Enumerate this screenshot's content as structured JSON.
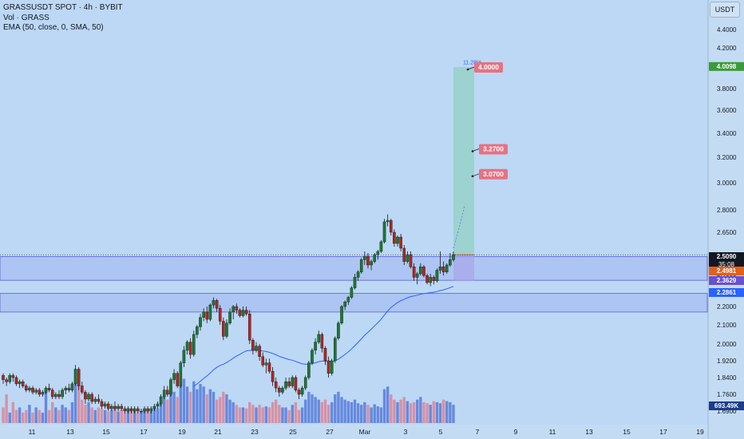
{
  "header": {
    "title": "GRASSUSDT SPOT · 4h · BYBIT",
    "volume_label": "Vol · GRASS",
    "ema_label": "EMA (50, close, 0, SMA, 50)"
  },
  "currency": "USDT",
  "colors": {
    "background": "#bcd8f5",
    "up": "#1b7a2e",
    "down": "#b3261e",
    "ema": "#2962ff",
    "zone": "#7b82e6",
    "target_box": "#8fd0c0",
    "target_label": "#e57383"
  },
  "chart_data": {
    "type": "candlestick",
    "x_tick_labels": [
      "11",
      "13",
      "15",
      "17",
      "19",
      "21",
      "23",
      "25",
      "27",
      "Mar",
      "3",
      "5",
      "7",
      "9",
      "11",
      "13",
      "15",
      "17",
      "19"
    ],
    "y_tick_labels": [
      "4.4000",
      "4.2000",
      "4.0000",
      "3.8000",
      "3.6000",
      "3.4000",
      "3.2000",
      "3.0000",
      "2.8000",
      "2.6500",
      "2.5000",
      "2.4000",
      "2.3000",
      "2.2000",
      "2.1000",
      "2.0000",
      "1.9200",
      "1.8400",
      "1.7600",
      "1.6900"
    ],
    "price_range": [
      1.67,
      4.5
    ],
    "price_labels": [
      {
        "label": "4.0098",
        "value": 4.0098,
        "color": "#3d9a3a"
      },
      {
        "label": "2.5090",
        "value": 2.509,
        "color": "#131722",
        "sub": "35:08"
      },
      {
        "label": "2.4981",
        "value": 2.4981,
        "color": "#e0611a"
      },
      {
        "label": "2.3629",
        "value": 2.3629,
        "color": "#6a4fd0"
      },
      {
        "label": "2.2861",
        "value": 2.2861,
        "color": "#2962ff"
      }
    ],
    "volume_label": "693.49K",
    "candles": [
      [
        1.85,
        1.86,
        1.81,
        1.83
      ],
      [
        1.83,
        1.84,
        1.8,
        1.82
      ],
      [
        1.82,
        1.86,
        1.81,
        1.85
      ],
      [
        1.85,
        1.86,
        1.82,
        1.84
      ],
      [
        1.84,
        1.85,
        1.8,
        1.81
      ],
      [
        1.81,
        1.83,
        1.79,
        1.82
      ],
      [
        1.82,
        1.83,
        1.79,
        1.8
      ],
      [
        1.8,
        1.81,
        1.77,
        1.78
      ],
      [
        1.78,
        1.8,
        1.77,
        1.79
      ],
      [
        1.79,
        1.8,
        1.76,
        1.77
      ],
      [
        1.77,
        1.79,
        1.76,
        1.78
      ],
      [
        1.78,
        1.79,
        1.75,
        1.76
      ],
      [
        1.76,
        1.78,
        1.75,
        1.77
      ],
      [
        1.77,
        1.8,
        1.76,
        1.79
      ],
      [
        1.79,
        1.81,
        1.77,
        1.78
      ],
      [
        1.78,
        1.79,
        1.74,
        1.75
      ],
      [
        1.75,
        1.77,
        1.74,
        1.76
      ],
      [
        1.76,
        1.78,
        1.74,
        1.75
      ],
      [
        1.75,
        1.79,
        1.74,
        1.78
      ],
      [
        1.78,
        1.8,
        1.76,
        1.79
      ],
      [
        1.79,
        1.81,
        1.77,
        1.78
      ],
      [
        1.78,
        1.82,
        1.77,
        1.81
      ],
      [
        1.81,
        1.9,
        1.8,
        1.88
      ],
      [
        1.88,
        1.89,
        1.78,
        1.8
      ],
      [
        1.8,
        1.82,
        1.76,
        1.77
      ],
      [
        1.77,
        1.78,
        1.72,
        1.74
      ],
      [
        1.74,
        1.77,
        1.73,
        1.76
      ],
      [
        1.76,
        1.77,
        1.72,
        1.73
      ],
      [
        1.73,
        1.75,
        1.72,
        1.74
      ],
      [
        1.74,
        1.76,
        1.72,
        1.73
      ],
      [
        1.73,
        1.74,
        1.7,
        1.71
      ],
      [
        1.71,
        1.73,
        1.7,
        1.72
      ],
      [
        1.72,
        1.73,
        1.69,
        1.7
      ],
      [
        1.7,
        1.72,
        1.69,
        1.71
      ],
      [
        1.71,
        1.73,
        1.69,
        1.7
      ],
      [
        1.7,
        1.72,
        1.69,
        1.71
      ],
      [
        1.71,
        1.72,
        1.69,
        1.7
      ],
      [
        1.7,
        1.71,
        1.68,
        1.69
      ],
      [
        1.69,
        1.71,
        1.68,
        1.7
      ],
      [
        1.7,
        1.71,
        1.68,
        1.69
      ],
      [
        1.69,
        1.71,
        1.68,
        1.7
      ],
      [
        1.7,
        1.71,
        1.68,
        1.69
      ],
      [
        1.69,
        1.7,
        1.68,
        1.69
      ],
      [
        1.69,
        1.71,
        1.68,
        1.7
      ],
      [
        1.7,
        1.71,
        1.68,
        1.69
      ],
      [
        1.69,
        1.71,
        1.68,
        1.7
      ],
      [
        1.7,
        1.72,
        1.69,
        1.71
      ],
      [
        1.71,
        1.73,
        1.7,
        1.72
      ],
      [
        1.72,
        1.76,
        1.71,
        1.75
      ],
      [
        1.75,
        1.8,
        1.74,
        1.78
      ],
      [
        1.78,
        1.8,
        1.75,
        1.76
      ],
      [
        1.76,
        1.84,
        1.75,
        1.83
      ],
      [
        1.83,
        1.88,
        1.81,
        1.86
      ],
      [
        1.86,
        1.87,
        1.79,
        1.8
      ],
      [
        1.8,
        1.92,
        1.79,
        1.91
      ],
      [
        1.91,
        1.99,
        1.89,
        1.97
      ],
      [
        1.97,
        2.02,
        1.95,
        2.01
      ],
      [
        2.01,
        2.03,
        1.93,
        1.95
      ],
      [
        1.95,
        2.07,
        1.94,
        2.05
      ],
      [
        2.05,
        2.1,
        2.03,
        2.09
      ],
      [
        2.09,
        2.16,
        2.07,
        2.14
      ],
      [
        2.14,
        2.19,
        2.12,
        2.17
      ],
      [
        2.17,
        2.2,
        2.11,
        2.13
      ],
      [
        2.13,
        2.22,
        2.12,
        2.21
      ],
      [
        2.21,
        2.26,
        2.19,
        2.24
      ],
      [
        2.24,
        2.25,
        2.17,
        2.19
      ],
      [
        2.19,
        2.21,
        2.1,
        2.12
      ],
      [
        2.12,
        2.14,
        2.02,
        2.04
      ],
      [
        2.04,
        2.13,
        2.03,
        2.11
      ],
      [
        2.11,
        2.19,
        2.1,
        2.17
      ],
      [
        2.17,
        2.21,
        2.13,
        2.2
      ],
      [
        2.2,
        2.22,
        2.16,
        2.18
      ],
      [
        2.18,
        2.19,
        2.14,
        2.15
      ],
      [
        2.15,
        2.2,
        2.14,
        2.18
      ],
      [
        2.18,
        2.2,
        2.15,
        2.16
      ],
      [
        2.16,
        2.18,
        2.0,
        2.02
      ],
      [
        2.02,
        2.03,
        1.95,
        1.97
      ],
      [
        1.97,
        2.01,
        1.96,
        1.99
      ],
      [
        1.99,
        2.0,
        1.92,
        1.94
      ],
      [
        1.94,
        1.96,
        1.89,
        1.9
      ],
      [
        1.9,
        1.93,
        1.86,
        1.91
      ],
      [
        1.91,
        1.93,
        1.86,
        1.87
      ],
      [
        1.87,
        1.89,
        1.8,
        1.82
      ],
      [
        1.82,
        1.84,
        1.77,
        1.79
      ],
      [
        1.79,
        1.8,
        1.75,
        1.77
      ],
      [
        1.77,
        1.8,
        1.76,
        1.79
      ],
      [
        1.79,
        1.84,
        1.78,
        1.82
      ],
      [
        1.82,
        1.84,
        1.79,
        1.8
      ],
      [
        1.8,
        1.85,
        1.79,
        1.84
      ],
      [
        1.84,
        1.85,
        1.77,
        1.78
      ],
      [
        1.78,
        1.79,
        1.74,
        1.76
      ],
      [
        1.76,
        1.8,
        1.75,
        1.79
      ],
      [
        1.79,
        1.85,
        1.78,
        1.84
      ],
      [
        1.84,
        1.92,
        1.83,
        1.91
      ],
      [
        1.91,
        1.98,
        1.9,
        1.97
      ],
      [
        1.97,
        2.03,
        1.95,
        2.01
      ],
      [
        2.01,
        2.07,
        2.0,
        2.05
      ],
      [
        2.05,
        2.06,
        1.96,
        1.98
      ],
      [
        1.98,
        1.99,
        1.9,
        1.92
      ],
      [
        1.92,
        1.94,
        1.84,
        1.86
      ],
      [
        1.86,
        1.93,
        1.85,
        1.92
      ],
      [
        1.92,
        2.04,
        1.91,
        2.03
      ],
      [
        2.03,
        2.12,
        2.02,
        2.11
      ],
      [
        2.11,
        2.21,
        2.1,
        2.2
      ],
      [
        2.2,
        2.24,
        2.18,
        2.23
      ],
      [
        2.23,
        2.27,
        2.21,
        2.26
      ],
      [
        2.26,
        2.33,
        2.25,
        2.32
      ],
      [
        2.32,
        2.4,
        2.31,
        2.38
      ],
      [
        2.38,
        2.42,
        2.36,
        2.41
      ],
      [
        2.41,
        2.49,
        2.4,
        2.48
      ],
      [
        2.48,
        2.53,
        2.45,
        2.5
      ],
      [
        2.5,
        2.52,
        2.43,
        2.45
      ],
      [
        2.45,
        2.48,
        2.42,
        2.47
      ],
      [
        2.47,
        2.52,
        2.46,
        2.51
      ],
      [
        2.51,
        2.54,
        2.48,
        2.53
      ],
      [
        2.53,
        2.6,
        2.52,
        2.59
      ],
      [
        2.59,
        2.74,
        2.58,
        2.72
      ],
      [
        2.72,
        2.77,
        2.69,
        2.73
      ],
      [
        2.73,
        2.74,
        2.63,
        2.65
      ],
      [
        2.65,
        2.67,
        2.56,
        2.58
      ],
      [
        2.58,
        2.63,
        2.56,
        2.62
      ],
      [
        2.62,
        2.64,
        2.53,
        2.55
      ],
      [
        2.55,
        2.57,
        2.45,
        2.47
      ],
      [
        2.47,
        2.53,
        2.46,
        2.51
      ],
      [
        2.51,
        2.53,
        2.43,
        2.44
      ],
      [
        2.44,
        2.46,
        2.36,
        2.38
      ],
      [
        2.38,
        2.41,
        2.34,
        2.4
      ],
      [
        2.4,
        2.46,
        2.39,
        2.44
      ],
      [
        2.44,
        2.45,
        2.38,
        2.39
      ],
      [
        2.39,
        2.4,
        2.34,
        2.35
      ],
      [
        2.35,
        2.4,
        2.33,
        2.38
      ],
      [
        2.38,
        2.39,
        2.34,
        2.36
      ],
      [
        2.36,
        2.43,
        2.35,
        2.42
      ],
      [
        2.42,
        2.53,
        2.4,
        2.44
      ],
      [
        2.44,
        2.47,
        2.39,
        2.41
      ],
      [
        2.41,
        2.46,
        2.4,
        2.45
      ],
      [
        2.45,
        2.52,
        2.44,
        2.48
      ],
      [
        2.48,
        2.53,
        2.47,
        2.51
      ]
    ],
    "volumes": [
      30,
      55,
      20,
      40,
      25,
      30,
      20,
      25,
      35,
      20,
      30,
      25,
      20,
      60,
      25,
      40,
      30,
      25,
      35,
      30,
      25,
      40,
      85,
      95,
      45,
      35,
      40,
      30,
      25,
      30,
      28,
      25,
      22,
      25,
      30,
      22,
      25,
      20,
      28,
      22,
      25,
      20,
      22,
      25,
      24,
      22,
      30,
      28,
      40,
      55,
      45,
      70,
      60,
      50,
      75,
      85,
      70,
      60,
      80,
      65,
      75,
      70,
      55,
      65,
      60,
      45,
      50,
      60,
      55,
      45,
      40,
      35,
      30,
      30,
      28,
      40,
      35,
      30,
      35,
      30,
      32,
      30,
      40,
      45,
      35,
      30,
      30,
      25,
      35,
      40,
      25,
      30,
      45,
      60,
      55,
      50,
      45,
      40,
      45,
      35,
      40,
      55,
      60,
      50,
      45,
      42,
      40,
      45,
      38,
      35,
      40,
      35,
      30,
      36,
      32,
      30,
      65,
      70,
      55,
      45,
      40,
      45,
      50,
      42,
      38,
      40,
      45,
      50,
      40,
      38,
      35,
      42,
      40,
      38,
      45,
      42,
      40,
      35,
      55,
      30
    ],
    "zones": [
      {
        "top": 2.4981,
        "bottom": 2.3629
      },
      {
        "top": 2.2861,
        "bottom": 2.17
      }
    ],
    "targets": [
      {
        "label": "4.0000",
        "value": 4.0
      },
      {
        "label": "3.2700",
        "value": 3.27
      },
      {
        "label": "3.0700",
        "value": 3.07
      }
    ],
    "target_percent_label": "11.28%",
    "current_price": 2.509,
    "title": "GRASSUSDT SPOT · 4h · BYBIT"
  }
}
